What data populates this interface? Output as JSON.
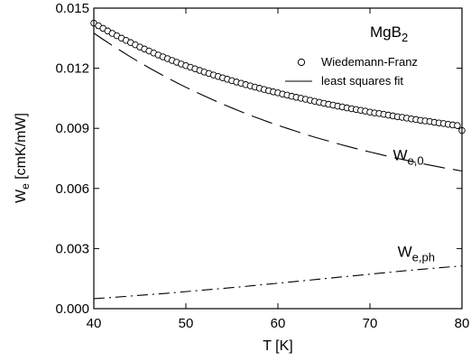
{
  "chart_data": {
    "type": "line",
    "xlabel": "T [K]",
    "ylabel_main": "W",
    "ylabel_sub": "e",
    "ylabel_unit": " [cmK/mW]",
    "xlim": [
      40,
      80
    ],
    "ylim": [
      0,
      0.015
    ],
    "x_ticks": [
      "40",
      "50",
      "60",
      "70",
      "80"
    ],
    "y_ticks": [
      "0.000",
      "0.003",
      "0.006",
      "0.009",
      "0.012",
      "0.015"
    ],
    "title_main": "MgB",
    "title_sub": "2",
    "legend": [
      {
        "label": "Wiedemann-Franz",
        "marker": "circle"
      },
      {
        "label": "least squares fit",
        "line": "solid"
      }
    ],
    "annotations": [
      {
        "main": "W",
        "sub": "e,0",
        "x": 72.5,
        "y": 0.0074
      },
      {
        "main": "W",
        "sub": "e,ph",
        "x": 73,
        "y": 0.0026
      }
    ],
    "series": [
      {
        "name": "Wiedemann-Franz",
        "style": "markers",
        "x": [
          40,
          40.5,
          41,
          41.5,
          42,
          42.5,
          43,
          43.5,
          44,
          44.5,
          45,
          45.5,
          46,
          46.5,
          47,
          47.5,
          48,
          48.5,
          49,
          49.5,
          50,
          50.5,
          51,
          51.5,
          52,
          52.5,
          53,
          53.5,
          54,
          54.5,
          55,
          55.5,
          56,
          56.5,
          57,
          57.5,
          58,
          58.5,
          59,
          59.5,
          60,
          60.5,
          61,
          61.5,
          62,
          62.5,
          63,
          63.5,
          64,
          64.5,
          65,
          65.5,
          66,
          66.5,
          67,
          67.5,
          68,
          68.5,
          69,
          69.5,
          70,
          70.5,
          71,
          71.5,
          72,
          72.5,
          73,
          73.5,
          74,
          74.5,
          75,
          75.5,
          76,
          76.5,
          77,
          77.5,
          78,
          78.5,
          79,
          79.5,
          80
        ],
        "y": [
          0.01425,
          0.01412,
          0.01399,
          0.01386,
          0.01374,
          0.01362,
          0.0135,
          0.01339,
          0.01328,
          0.01317,
          0.01306,
          0.01296,
          0.01286,
          0.01276,
          0.01266,
          0.01257,
          0.01248,
          0.01239,
          0.0123,
          0.01221,
          0.01213,
          0.01205,
          0.01197,
          0.01189,
          0.01181,
          0.01174,
          0.01166,
          0.01159,
          0.01152,
          0.01145,
          0.01138,
          0.01131,
          0.01125,
          0.01118,
          0.01112,
          0.01106,
          0.011,
          0.01094,
          0.01088,
          0.01082,
          0.01077,
          0.01071,
          0.01066,
          0.0106,
          0.01055,
          0.0105,
          0.01045,
          0.0104,
          0.01035,
          0.0103,
          0.01025,
          0.0102,
          0.01016,
          0.01011,
          0.01007,
          0.01002,
          0.00998,
          0.00994,
          0.0099,
          0.00986,
          0.00981,
          0.00977,
          0.00974,
          0.0097,
          0.00966,
          0.00962,
          0.00958,
          0.00955,
          0.00951,
          0.00947,
          0.00944,
          0.0094,
          0.00937,
          0.00934,
          0.0093,
          0.00927,
          0.00924,
          0.0092,
          0.00917,
          0.00914,
          0.00889
        ]
      },
      {
        "name": "least squares fit",
        "style": "solid",
        "x": [
          40,
          41,
          42,
          43,
          44,
          45,
          46,
          47,
          48,
          49,
          50,
          51,
          52,
          53,
          54,
          55,
          56,
          57,
          58,
          59,
          60,
          61,
          62,
          63,
          64,
          65,
          66,
          67,
          68,
          69,
          70,
          71,
          72,
          73,
          74,
          75,
          76,
          77,
          78,
          79,
          80
        ],
        "y": [
          0.01425,
          0.01399,
          0.01374,
          0.0135,
          0.01328,
          0.01306,
          0.01286,
          0.01266,
          0.01248,
          0.0123,
          0.01213,
          0.01197,
          0.01181,
          0.01166,
          0.01152,
          0.01138,
          0.01125,
          0.01112,
          0.011,
          0.01088,
          0.01077,
          0.01066,
          0.01055,
          0.01045,
          0.01035,
          0.01025,
          0.01016,
          0.01007,
          0.00998,
          0.0099,
          0.00981,
          0.00974,
          0.00966,
          0.00958,
          0.00951,
          0.00944,
          0.00937,
          0.0093,
          0.00924,
          0.00917,
          0.00889
        ]
      },
      {
        "name": "W_e,0",
        "style": "dashed",
        "x": [
          40,
          41,
          42,
          43,
          44,
          45,
          46,
          47,
          48,
          49,
          50,
          51,
          52,
          53,
          54,
          55,
          56,
          57,
          58,
          59,
          60,
          61,
          62,
          63,
          64,
          65,
          66,
          67,
          68,
          69,
          70,
          71,
          72,
          73,
          74,
          75,
          76,
          77,
          78,
          79,
          80
        ],
        "y": [
          0.01375,
          0.01344,
          0.01314,
          0.01285,
          0.01256,
          0.01229,
          0.01202,
          0.01177,
          0.01152,
          0.01128,
          0.01105,
          0.01083,
          0.01062,
          0.01041,
          0.01021,
          0.01002,
          0.00983,
          0.00965,
          0.00948,
          0.00931,
          0.00915,
          0.009,
          0.00885,
          0.0087,
          0.00856,
          0.00843,
          0.0083,
          0.00817,
          0.00805,
          0.00793,
          0.00782,
          0.00771,
          0.0076,
          0.0075,
          0.0074,
          0.0073,
          0.00721,
          0.00712,
          0.00703,
          0.00695,
          0.00687
        ]
      },
      {
        "name": "W_e,ph",
        "style": "dashdot",
        "x": [
          40,
          42,
          44,
          46,
          48,
          50,
          52,
          54,
          56,
          58,
          60,
          62,
          64,
          66,
          68,
          70,
          72,
          74,
          76,
          78,
          80
        ],
        "y": [
          0.0005,
          0.00056,
          0.00063,
          0.0007,
          0.00077,
          0.00085,
          0.00093,
          0.00101,
          0.00109,
          0.00118,
          0.00127,
          0.00136,
          0.00145,
          0.00154,
          0.00163,
          0.00172,
          0.00181,
          0.0019,
          0.00198,
          0.00206,
          0.00213
        ]
      }
    ]
  }
}
